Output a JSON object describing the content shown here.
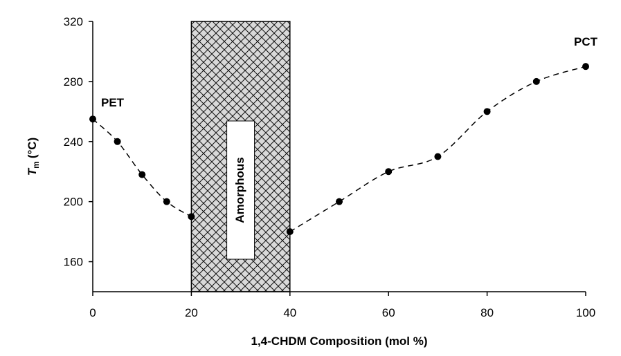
{
  "chart_data": {
    "type": "line",
    "title": "",
    "xlabel": "1,4-CHDM Composition (mol %)",
    "ylabel_main": "T",
    "ylabel_sub": "m",
    "ylabel_unit": "(°C)",
    "xlim": [
      0,
      100
    ],
    "ylim": [
      140,
      320
    ],
    "xticks": [
      0,
      20,
      40,
      60,
      80,
      100
    ],
    "yticks": [
      160,
      200,
      240,
      280,
      320
    ],
    "grid": false,
    "series": [
      {
        "segment": "PET",
        "x": [
          0,
          5,
          10,
          15,
          20
        ],
        "y": [
          255,
          240,
          218,
          200,
          190
        ]
      },
      {
        "segment": "PCT",
        "x": [
          40,
          50,
          60,
          70,
          80,
          90,
          100
        ],
        "y": [
          180,
          200,
          220,
          230,
          260,
          280,
          290
        ]
      }
    ],
    "region": {
      "x_start": 20,
      "x_end": 40,
      "label": "Amorphous"
    },
    "annotations": [
      {
        "text": "PET",
        "x": 0,
        "y": 255
      },
      {
        "text": "PCT",
        "x": 100,
        "y": 290
      }
    ],
    "marker_color": "#000000",
    "line_color": "#000000"
  }
}
